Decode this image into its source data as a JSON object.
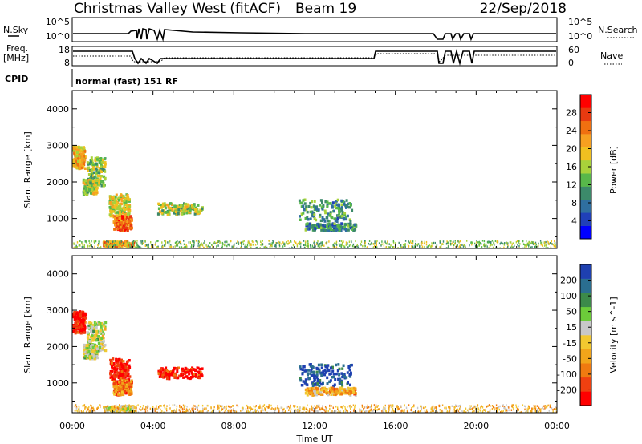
{
  "header": {
    "station": "Christmas Valley West (fitACF)",
    "beam": "Beam 19",
    "date": "22/Sep/2018"
  },
  "top_panels": {
    "nsky_label": "N.Sky",
    "nsky_ticks": [
      "10^5",
      "10^0"
    ],
    "nsearch_label": "N.Search",
    "nsearch_ticks": [
      "10^5",
      "10^0"
    ],
    "freq_label_1": "Freq.",
    "freq_label_2": "[MHz]",
    "freq_ticks": [
      "18",
      "8"
    ],
    "nave_label": "Nave",
    "nave_ticks": [
      "60",
      "0"
    ],
    "cpid_label": "CPID",
    "cpid_text": "normal (fast) 151 RF"
  },
  "chart_data": [
    {
      "type": "heatmap",
      "title": "",
      "quantity": "Power",
      "ylabel": "Slant Range [km]",
      "ylim": [
        180,
        4500
      ],
      "yticks": [
        1000,
        2000,
        3000,
        4000
      ],
      "xlabel": "",
      "xlim": [
        0,
        24
      ],
      "colorbar": {
        "label": "Power [dB]",
        "ticks": [
          "28",
          "24",
          "20",
          "16",
          "12",
          "8",
          "4"
        ],
        "colors": [
          "#0000ff",
          "#2040b8",
          "#2f6fa0",
          "#3c8a6a",
          "#58b84a",
          "#a8d23a",
          "#f0c020",
          "#f7a020",
          "#f07010",
          "#e83a10",
          "#ff0000"
        ]
      },
      "regions": [
        {
          "t": [
            0.0,
            0.6
          ],
          "r": [
            2400,
            3000
          ],
          "level": 0.65
        },
        {
          "t": [
            0.7,
            1.6
          ],
          "r": [
            1900,
            2700
          ],
          "level": 0.45
        },
        {
          "t": [
            0.5,
            1.2
          ],
          "r": [
            1700,
            2100
          ],
          "level": 0.5
        },
        {
          "t": [
            1.8,
            2.8
          ],
          "r": [
            1100,
            1700
          ],
          "level": 0.55
        },
        {
          "t": [
            2.0,
            2.9
          ],
          "r": [
            700,
            1100
          ],
          "level": 0.78
        },
        {
          "t": [
            4.2,
            6.4
          ],
          "r": [
            1150,
            1450
          ],
          "level": 0.5
        },
        {
          "t": [
            11.2,
            13.8
          ],
          "r": [
            950,
            1550
          ],
          "level": 0.35
        },
        {
          "t": [
            11.5,
            14.0
          ],
          "r": [
            700,
            900
          ],
          "level": 0.3
        },
        {
          "t": [
            1.5,
            3.0
          ],
          "r": [
            250,
            400
          ],
          "level": 0.72
        },
        {
          "t": [
            0.0,
            24.0
          ],
          "r": [
            200,
            420
          ],
          "level": 0.45
        }
      ]
    },
    {
      "type": "heatmap",
      "title": "",
      "quantity": "Velocity",
      "ylabel": "Slant Range [km]",
      "ylim": [
        180,
        4500
      ],
      "yticks": [
        1000,
        2000,
        3000,
        4000
      ],
      "xlabel": "Time UT",
      "xticks": [
        "00:00",
        "04:00",
        "08:00",
        "12:00",
        "16:00",
        "20:00",
        "00:00"
      ],
      "xlim": [
        0,
        24
      ],
      "colorbar": {
        "label": "Velocity [m s^-1]",
        "ticks": [
          "200",
          "100",
          "50",
          "15",
          "-15",
          "-50",
          "-100",
          "-200"
        ],
        "colors": [
          "#ff0000",
          "#f04010",
          "#f07a10",
          "#f2a51a",
          "#f2c830",
          "#c8c8c8",
          "#6ccc3a",
          "#3c8a4a",
          "#2a6e90",
          "#1e40b0"
        ]
      },
      "regions": [
        {
          "t": [
            0.0,
            0.6
          ],
          "r": [
            2400,
            3000
          ],
          "level": 0.05
        },
        {
          "t": [
            0.7,
            1.6
          ],
          "r": [
            1900,
            2700
          ],
          "level": 0.55
        },
        {
          "t": [
            0.5,
            1.2
          ],
          "r": [
            1700,
            2100
          ],
          "level": 0.55
        },
        {
          "t": [
            1.8,
            2.8
          ],
          "r": [
            1100,
            1700
          ],
          "level": 0.05
        },
        {
          "t": [
            2.0,
            2.9
          ],
          "r": [
            700,
            1100
          ],
          "level": 0.25
        },
        {
          "t": [
            4.2,
            6.4
          ],
          "r": [
            1150,
            1450
          ],
          "level": 0.05
        },
        {
          "t": [
            11.2,
            13.8
          ],
          "r": [
            950,
            1550
          ],
          "level": 0.92
        },
        {
          "t": [
            11.5,
            14.0
          ],
          "r": [
            700,
            900
          ],
          "level": 0.35
        },
        {
          "t": [
            1.5,
            3.0
          ],
          "r": [
            250,
            400
          ],
          "level": 0.55
        },
        {
          "t": [
            0.0,
            24.0
          ],
          "r": [
            200,
            420
          ],
          "level": 0.4
        }
      ]
    }
  ]
}
